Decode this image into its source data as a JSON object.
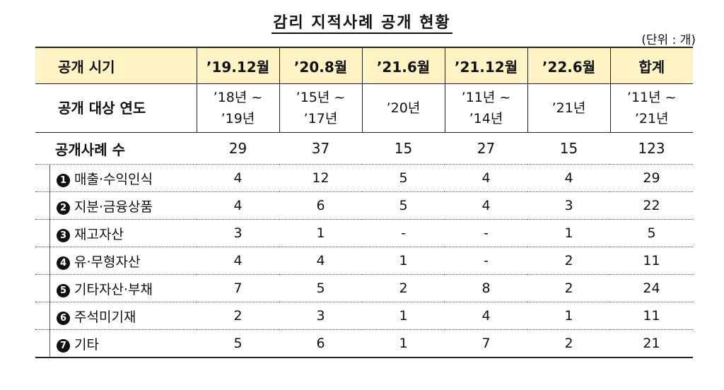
{
  "title": "감리 지적사례 공개 현황",
  "unit": "(단위 : 개)",
  "table": {
    "header": {
      "label": "공개 시기",
      "columns": [
        "’19.12월",
        "’20.8월",
        "’21.6월",
        "’21.12월",
        "’22.6월",
        "합계"
      ]
    },
    "target_years": {
      "label": "공개 대상 연도",
      "cells": [
        {
          "line1": "’18년 ~",
          "line2": "’19년"
        },
        {
          "line1": "’15년 ~",
          "line2": "’17년"
        },
        {
          "line1": "’20년",
          "line2": ""
        },
        {
          "line1": "’11년 ~",
          "line2": "’14년"
        },
        {
          "line1": "’21년",
          "line2": ""
        },
        {
          "line1": "’11년 ~",
          "line2": "’21년"
        }
      ]
    },
    "count": {
      "label": "공개사례 수",
      "values": [
        "29",
        "37",
        "15",
        "27",
        "15",
        "123"
      ]
    },
    "items": [
      {
        "num": "1",
        "label": "매출·수익인식",
        "values": [
          "4",
          "12",
          "5",
          "4",
          "4",
          "29"
        ]
      },
      {
        "num": "2",
        "label": "지분·금융상품",
        "values": [
          "4",
          "6",
          "5",
          "4",
          "3",
          "22"
        ]
      },
      {
        "num": "3",
        "label": "재고자산",
        "values": [
          "3",
          "1",
          "-",
          "-",
          "1",
          "5"
        ]
      },
      {
        "num": "4",
        "label": "유·무형자산",
        "values": [
          "4",
          "4",
          "1",
          "-",
          "2",
          "11"
        ]
      },
      {
        "num": "5",
        "label": "기타자산·부채",
        "values": [
          "7",
          "5",
          "2",
          "8",
          "2",
          "24"
        ]
      },
      {
        "num": "6",
        "label": "주석미기재",
        "values": [
          "2",
          "3",
          "1",
          "4",
          "1",
          "11"
        ]
      },
      {
        "num": "7",
        "label": "기타",
        "values": [
          "5",
          "6",
          "1",
          "7",
          "2",
          "21"
        ]
      }
    ]
  }
}
